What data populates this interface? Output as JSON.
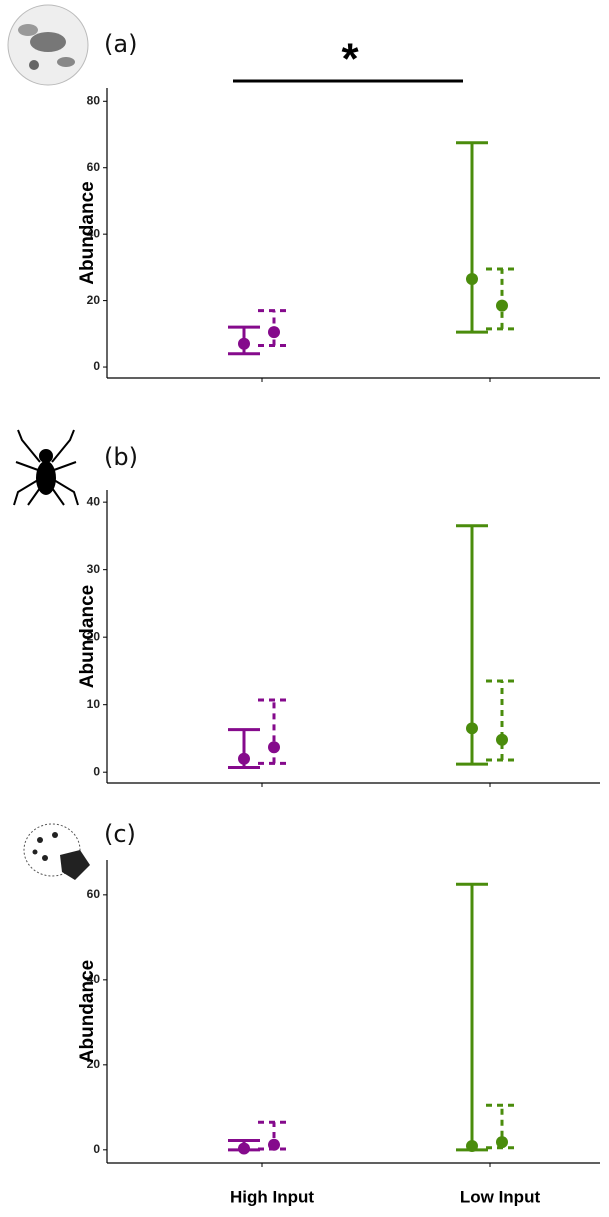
{
  "chart_data": [
    {
      "type": "errorbar",
      "panel_label": "(a)",
      "ylabel": "Abundance",
      "annotation": "*",
      "categories": [
        null,
        null
      ],
      "category_colors": [
        "#850a8c",
        "#4a8c0c"
      ],
      "series": [
        {
          "line_style": "solid",
          "values": [
            7,
            26.5
          ],
          "lower": [
            4,
            10.5
          ],
          "upper": [
            12,
            67.5
          ]
        },
        {
          "line_style": "dashed",
          "values": [
            10.5,
            18.5
          ],
          "lower": [
            6.5,
            11.5
          ],
          "upper": [
            17,
            29.5
          ]
        }
      ],
      "ylim": [
        -3.3,
        84
      ],
      "yticks": [
        0,
        20,
        40,
        60,
        80
      ]
    },
    {
      "type": "errorbar",
      "panel_label": "(b)",
      "ylabel": "Abundance",
      "categories": [
        null,
        null
      ],
      "category_colors": [
        "#850a8c",
        "#4a8c0c"
      ],
      "series": [
        {
          "line_style": "solid",
          "values": [
            2,
            6.5
          ],
          "lower": [
            0.7,
            1.2
          ],
          "upper": [
            6.3,
            36.5
          ]
        },
        {
          "line_style": "dashed",
          "values": [
            3.7,
            4.8
          ],
          "lower": [
            1.3,
            1.8
          ],
          "upper": [
            10.7,
            13.5
          ]
        }
      ],
      "ylim": [
        -1.6,
        41.8
      ],
      "yticks": [
        0,
        10,
        20,
        30,
        40
      ]
    },
    {
      "type": "errorbar",
      "panel_label": "(c)",
      "ylabel": "Abundance",
      "categories": [
        "High Input",
        "Low Input"
      ],
      "category_colors": [
        "#850a8c",
        "#4a8c0c"
      ],
      "series": [
        {
          "line_style": "solid",
          "values": [
            0.3,
            0.9
          ],
          "lower": [
            0,
            0
          ],
          "upper": [
            2.2,
            62.5
          ]
        },
        {
          "line_style": "dashed",
          "values": [
            1.2,
            1.8
          ],
          "lower": [
            0.2,
            0.5
          ],
          "upper": [
            6.5,
            10.5
          ]
        }
      ],
      "ylim": [
        -3.1,
        68.2
      ],
      "yticks": [
        0,
        20,
        40,
        60
      ]
    }
  ]
}
